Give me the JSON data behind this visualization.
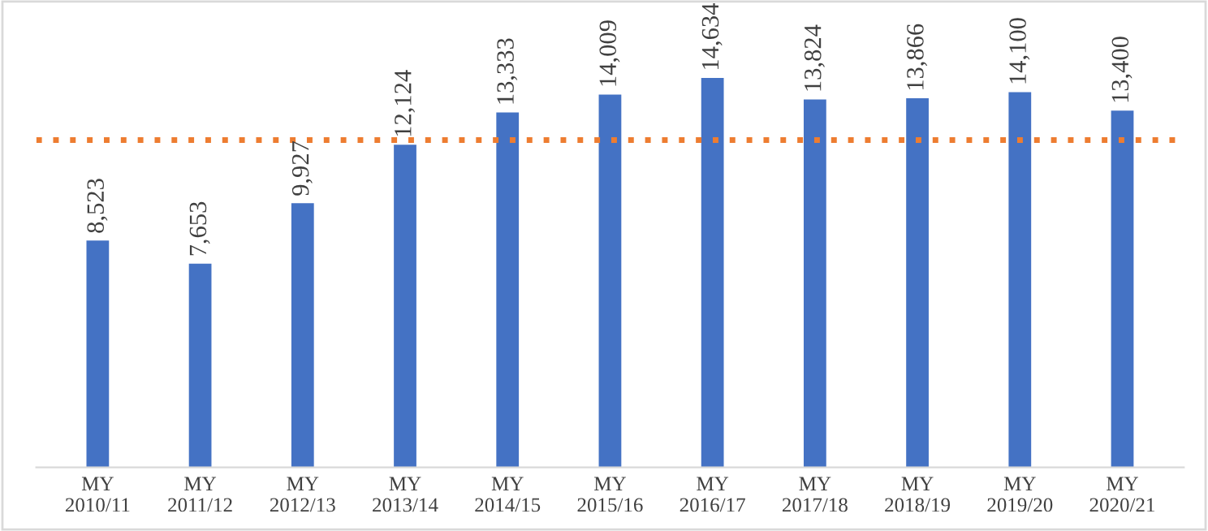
{
  "chart_data": {
    "type": "bar",
    "categories": [
      "MY\n2010/11",
      "MY\n2011/12",
      "MY\n2012/13",
      "MY\n2013/14",
      "MY\n2014/15",
      "MY\n2015/16",
      "MY\n2016/17",
      "MY\n2017/18",
      "MY\n2018/19",
      "MY\n2019/20",
      "MY\n2020/21"
    ],
    "values": [
      8523,
      7653,
      9927,
      12124,
      13333,
      14009,
      14634,
      13824,
      13866,
      14100,
      13400
    ],
    "value_labels": [
      "8,523",
      "7,653",
      "9,927",
      "12,124",
      "13,333",
      "14,009",
      "14,634",
      "13,824",
      "13,866",
      "14,100",
      "13,400"
    ],
    "color": "#4472c4",
    "ref_lines": [
      {
        "axis": "y",
        "value": 12300,
        "color": "#ed7d31",
        "line_style": "dotted"
      }
    ],
    "grid": false,
    "legend": false
  }
}
